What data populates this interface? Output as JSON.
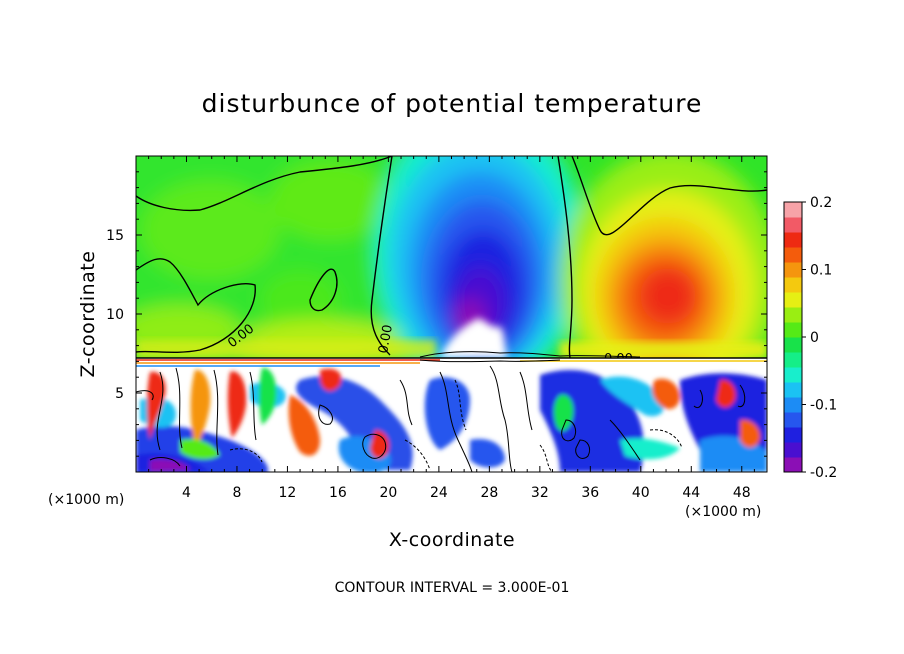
{
  "chart_data": {
    "type": "heatmap",
    "title": "disturbunce of potential temperature",
    "xlabel": "X-coordinate",
    "ylabel": "Z-coordinate",
    "x_unit": "(×1000 m)",
    "z_unit": "(×1000 m)",
    "xlim": [
      0,
      50
    ],
    "ylim": [
      0,
      20
    ],
    "x_ticks": [
      4,
      8,
      12,
      16,
      20,
      24,
      28,
      32,
      36,
      40,
      44,
      48
    ],
    "y_ticks": [
      5,
      10,
      15
    ],
    "colorbar": {
      "range": [
        -0.2,
        0.2
      ],
      "ticks": [
        "0.2",
        "0.1",
        "0",
        "-0.1",
        "-0.2"
      ],
      "colors": [
        "#8b0fb5",
        "#4a0fd0",
        "#1f20e0",
        "#2656ee",
        "#1c8cf5",
        "#1bc2f3",
        "#18eecc",
        "#15ee88",
        "#18e24a",
        "#55ea16",
        "#9aee12",
        "#e6ef14",
        "#f4c90f",
        "#f5950e",
        "#f45c0c",
        "#ee2a12",
        "#f25a66",
        "#f7a3a8"
      ]
    },
    "contour_labels": [
      "0.00",
      "0.00",
      "0.00"
    ],
    "interface_height": 7.3,
    "upper_features": [
      {
        "kind": "cold_plume",
        "x_center": 29.5,
        "z_center": 11.5,
        "value": -0.2
      },
      {
        "kind": "warm_plume",
        "x_center": 42.5,
        "z_center": 11.8,
        "value": 0.15
      }
    ],
    "footer": "CONTOUR INTERVAL = 3.000E-01"
  }
}
